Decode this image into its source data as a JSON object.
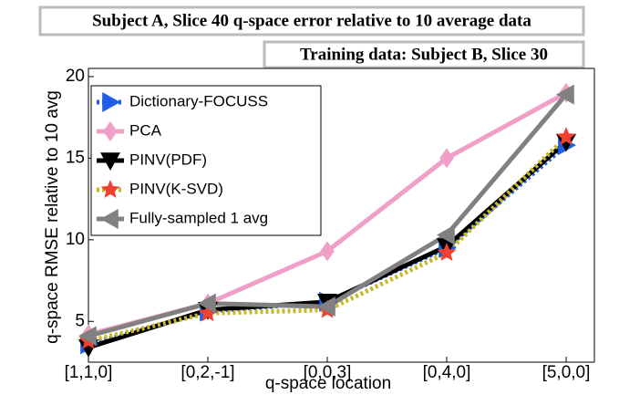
{
  "chart_data": {
    "type": "line",
    "title": "Subject A, Slice 40 q-space error relative to 10 average data",
    "subtitle": "Training data: Subject B, Slice 30",
    "x_label": "q-space location",
    "y_label": "q-space RMSE relative to 10 avg",
    "categories": [
      "[1,1,0]",
      "[0,2,-1]",
      "[0,0,3]",
      "[0,4,0]",
      "[5,0,0]"
    ],
    "ylim": [
      2.5,
      20.5
    ],
    "yticks": [
      5,
      10,
      15,
      20
    ],
    "legend": "upper-left",
    "series": [
      {
        "name": "Dictionary-FOCUSS",
        "color": "#1f5fe8",
        "marker": "triangle-right",
        "dash": "dotted",
        "values": [
          3.6,
          5.6,
          6.2,
          9.5,
          15.8
        ]
      },
      {
        "name": "PCA",
        "color": "#f0a0c8",
        "marker": "diamond",
        "dash": "solid",
        "values": [
          4.2,
          6.1,
          9.3,
          15.0,
          19.0
        ]
      },
      {
        "name": "PINV(PDF)",
        "color": "#000000",
        "marker": "triangle-down",
        "dash": "solid",
        "values": [
          3.4,
          5.7,
          6.2,
          9.6,
          16.0
        ]
      },
      {
        "name": "PINV(K-SVD)",
        "color": "#f04030",
        "line_color": "#c8b828",
        "marker": "star",
        "dash": "dotted",
        "values": [
          3.8,
          5.5,
          5.7,
          9.2,
          16.3
        ]
      },
      {
        "name": "Fully-sampled 1 avg",
        "color": "#808080",
        "marker": "triangle-left",
        "dash": "solid",
        "values": [
          4.1,
          6.1,
          5.9,
          10.3,
          18.9
        ]
      }
    ]
  }
}
